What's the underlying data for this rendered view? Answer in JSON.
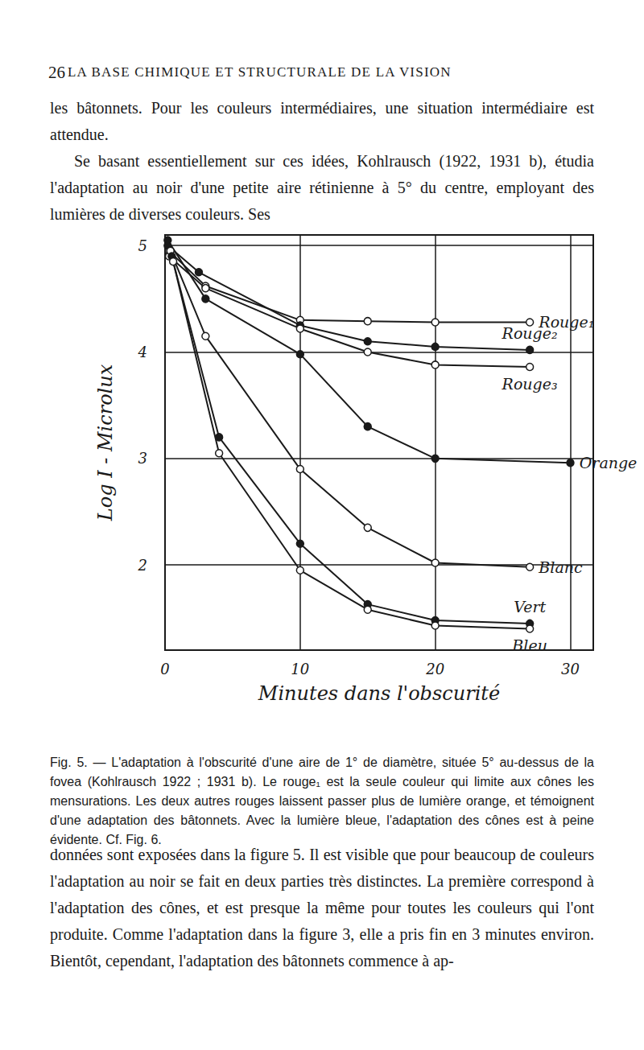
{
  "page_number": "26",
  "header": "LA BASE CHIMIQUE ET STRUCTURALE DE LA VISION",
  "text_before": [
    "les bâtonnets. Pour les couleurs intermédiaires, une situation intermédiaire est attendue.",
    "Se basant essentiellement sur ces idées, Kohlrausch (1922, 1931 b), étudia l'adaptation au noir d'une petite aire rétinienne à 5° du centre, employant des lumières de diverses couleurs. Ses"
  ],
  "chart_data": {
    "type": "line",
    "x_label": "Minutes dans l'obscurité",
    "y_label": "Log I - Microlux",
    "xlim": [
      0,
      31.7
    ],
    "xticks": [
      0,
      10,
      20,
      30
    ],
    "ylim": [
      1.2,
      5.1
    ],
    "yticks": [
      2,
      3,
      4,
      5
    ],
    "grid": true,
    "color": "#1a1a1a",
    "series": [
      {
        "name": "Rouge₁",
        "marker": "open",
        "x": [
          0.3,
          3,
          10,
          15,
          20,
          27
        ],
        "values": [
          4.95,
          4.62,
          4.3,
          4.29,
          4.28,
          4.28
        ]
      },
      {
        "name": "Rouge₂",
        "marker": "filled",
        "x": [
          0.2,
          2.5,
          10,
          15,
          20,
          27
        ],
        "values": [
          5.0,
          4.75,
          4.25,
          4.1,
          4.05,
          4.02
        ]
      },
      {
        "name": "Rouge₃",
        "marker": "open",
        "x": [
          0.3,
          3,
          10,
          15,
          20,
          27
        ],
        "values": [
          4.9,
          4.6,
          4.22,
          4.0,
          3.88,
          3.86
        ]
      },
      {
        "name": "Orange",
        "marker": "filled",
        "x": [
          0.2,
          3,
          10,
          15,
          20,
          30
        ],
        "values": [
          5.05,
          4.5,
          3.98,
          3.3,
          3.0,
          2.96
        ]
      },
      {
        "name": "Blanc",
        "marker": "open",
        "x": [
          0.4,
          3,
          10,
          15,
          20,
          27
        ],
        "values": [
          4.95,
          4.15,
          2.9,
          2.35,
          2.02,
          1.98
        ]
      },
      {
        "name": "Vert",
        "marker": "filled",
        "x": [
          0.5,
          4,
          10,
          15,
          20,
          27
        ],
        "values": [
          4.9,
          3.2,
          2.2,
          1.63,
          1.48,
          1.45
        ]
      },
      {
        "name": "Bleu",
        "marker": "open",
        "x": [
          0.6,
          4,
          10,
          15,
          20,
          27
        ],
        "values": [
          4.85,
          3.05,
          1.95,
          1.58,
          1.43,
          1.4
        ]
      }
    ]
  },
  "caption": "Fig. 5. — L'adaptation à l'obscurité d'une aire de 1° de diamètre, située 5° au-dessus de la fovea (Kohlrausch 1922 ; 1931 b). Le rouge₁ est la seule couleur qui limite aux cônes les mensurations. Les deux autres rouges laissent passer plus de lumière orange, et témoignent d'une adaptation des bâtonnets. Avec la lumière bleue, l'adaptation des cônes est à peine évidente. Cf. Fig. 6.",
  "text_after": "données sont exposées dans la figure 5. Il est visible que pour beaucoup de couleurs l'adaptation au noir se fait en deux parties très distinctes. La première correspond à l'adaptation des cônes, et est presque la même pour toutes les couleurs qui l'ont produite. Comme l'adaptation dans la figure 3, elle a pris fin en 3 minutes environ. Bientôt, cependant, l'adaptation des bâtonnets commence à ap-"
}
